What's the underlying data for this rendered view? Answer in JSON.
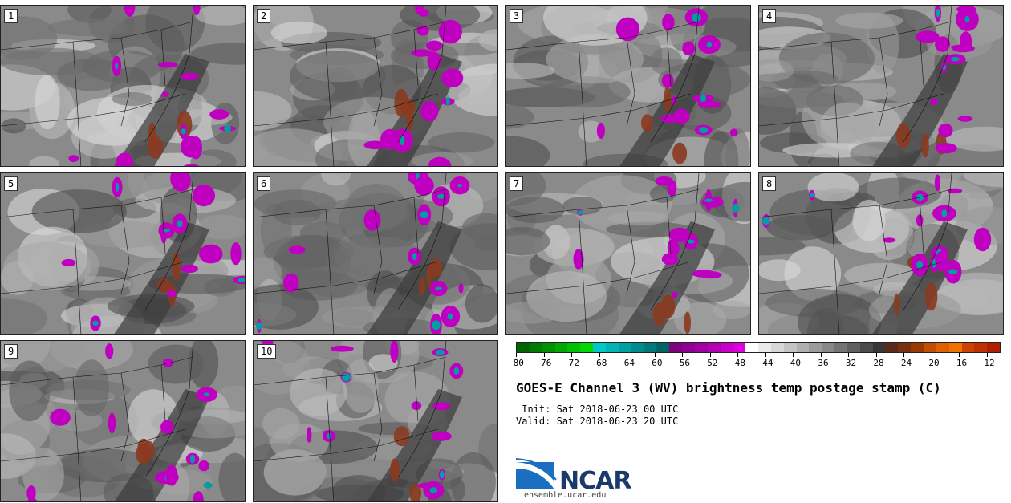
{
  "panels": [
    {
      "label": "1"
    },
    {
      "label": "2"
    },
    {
      "label": "3"
    },
    {
      "label": "4"
    },
    {
      "label": "5"
    },
    {
      "label": "6"
    },
    {
      "label": "7"
    },
    {
      "label": "8"
    },
    {
      "label": "9"
    },
    {
      "label": "10"
    }
  ],
  "colorbar": {
    "min": -80,
    "max": -10,
    "tick_labels": [
      "−80",
      "−76",
      "−72",
      "−68",
      "−64",
      "−60",
      "−56",
      "−52",
      "−48",
      "−44",
      "−40",
      "−36",
      "−32",
      "−28",
      "−24",
      "−20",
      "−16",
      "−12"
    ],
    "tick_values": [
      -80,
      -76,
      -72,
      -68,
      -64,
      -60,
      -56,
      -52,
      -48,
      -44,
      -40,
      -36,
      -32,
      -28,
      -24,
      -20,
      -16,
      -12
    ],
    "colors": [
      "#006400",
      "#007a00",
      "#009000",
      "#00a800",
      "#00c000",
      "#00d800",
      "#00c8c8",
      "#00b4b4",
      "#00a0a0",
      "#008c8c",
      "#007878",
      "#006464",
      "#800080",
      "#900090",
      "#a000a0",
      "#b400b4",
      "#c800c8",
      "#dc00dc",
      "#ffffff",
      "#ebebeb",
      "#d7d7d7",
      "#c3c3c3",
      "#afafaf",
      "#9b9b9b",
      "#878787",
      "#737373",
      "#5f5f5f",
      "#4b4b4b",
      "#373737",
      "#5a2a1a",
      "#7a3010",
      "#9a3a00",
      "#c05000",
      "#e06000",
      "#f07000",
      "#d04000",
      "#c03000",
      "#b02000"
    ]
  },
  "title": "GOES-E Channel 3 (WV) brightness temp postage stamp (C)",
  "init_line": " Init: Sat 2018-06-23 00 UTC",
  "valid_line": "Valid: Sat 2018-06-23 20 UTC",
  "logo": {
    "text": "NCAR",
    "url": "ensemble.ucar.edu"
  }
}
